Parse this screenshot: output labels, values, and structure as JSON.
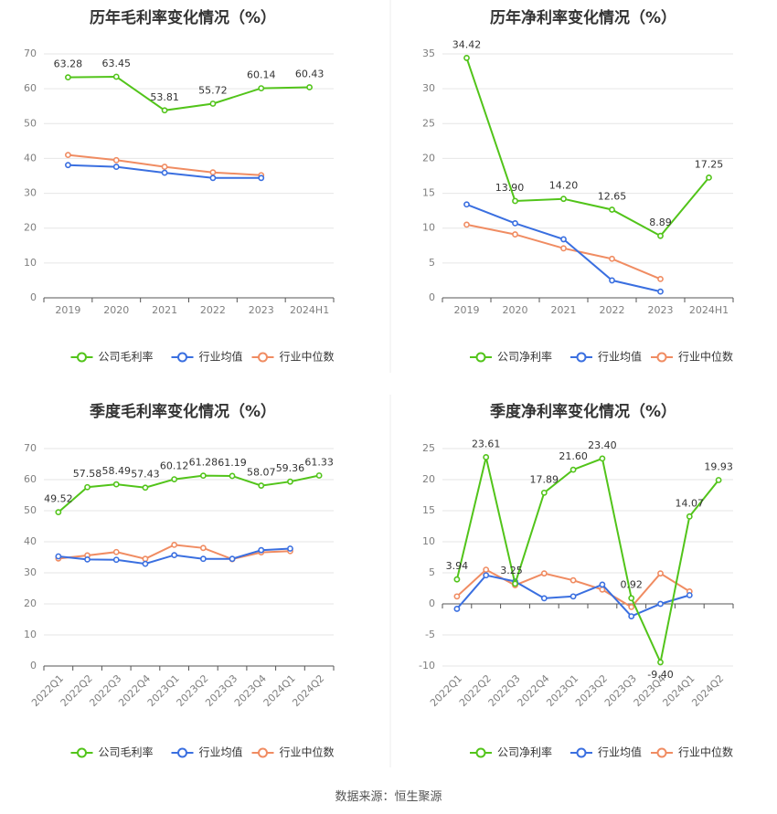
{
  "colors": {
    "green": "#52c41a",
    "blue": "#3a6fe0",
    "orange": "#f08c62"
  },
  "legend": {
    "gross": [
      "公司毛利率",
      "行业均值",
      "行业中位数"
    ],
    "net": [
      "公司净利率",
      "行业均值",
      "行业中位数"
    ]
  },
  "source": "数据来源：恒生聚源",
  "chart_data": [
    {
      "id": "annual-gross",
      "type": "line",
      "title": "历年毛利率变化情况（%）",
      "categories": [
        "2019",
        "2020",
        "2021",
        "2022",
        "2023",
        "2024H1"
      ],
      "ylim": [
        0,
        70
      ],
      "yticks": [
        0,
        10,
        20,
        30,
        40,
        50,
        60,
        70
      ],
      "series": [
        {
          "name": "公司毛利率",
          "color": "green",
          "values": [
            63.28,
            63.45,
            53.81,
            55.72,
            60.14,
            60.43
          ],
          "labels": [
            "63.28",
            "63.45",
            "53.81",
            "55.72",
            "60.14",
            "60.43"
          ]
        },
        {
          "name": "行业均值",
          "color": "blue",
          "values": [
            38.1,
            37.6,
            35.9,
            34.4,
            34.4,
            null
          ]
        },
        {
          "name": "行业中位数",
          "color": "orange",
          "values": [
            41.0,
            39.5,
            37.6,
            36.0,
            35.2,
            null
          ]
        }
      ]
    },
    {
      "id": "annual-net",
      "type": "line",
      "title": "历年净利率变化情况（%）",
      "categories": [
        "2019",
        "2020",
        "2021",
        "2022",
        "2023",
        "2024H1"
      ],
      "ylim": [
        0,
        35
      ],
      "yticks": [
        0,
        5,
        10,
        15,
        20,
        25,
        30,
        35
      ],
      "series": [
        {
          "name": "公司净利率",
          "color": "green",
          "values": [
            34.42,
            13.9,
            14.2,
            12.65,
            8.89,
            17.25
          ],
          "labels": [
            "34.42",
            "13.90",
            "14.20",
            "12.65",
            "8.89",
            "17.25"
          ]
        },
        {
          "name": "行业均值",
          "color": "blue",
          "values": [
            13.4,
            10.7,
            8.4,
            2.5,
            0.9,
            null
          ]
        },
        {
          "name": "行业中位数",
          "color": "orange",
          "values": [
            10.5,
            9.1,
            7.1,
            5.6,
            2.7,
            null
          ]
        }
      ]
    },
    {
      "id": "quarterly-gross",
      "type": "line",
      "title": "季度毛利率变化情况（%）",
      "categories": [
        "2022Q1",
        "2022Q2",
        "2022Q3",
        "2022Q4",
        "2023Q1",
        "2023Q2",
        "2023Q3",
        "2023Q4",
        "2024Q1",
        "2024Q2"
      ],
      "ylim": [
        0,
        70
      ],
      "yticks": [
        0,
        10,
        20,
        30,
        40,
        50,
        60,
        70
      ],
      "series": [
        {
          "name": "公司毛利率",
          "color": "green",
          "values": [
            49.52,
            57.58,
            58.49,
            57.43,
            60.12,
            61.28,
            61.19,
            58.07,
            59.36,
            61.33
          ],
          "labels": [
            "49.52",
            "57.58",
            "58.49",
            "57.43",
            "60.12",
            "61.28",
            "61.19",
            "58.07",
            "59.36",
            "61.33"
          ]
        },
        {
          "name": "行业均值",
          "color": "blue",
          "values": [
            35.3,
            34.3,
            34.2,
            32.9,
            35.7,
            34.5,
            34.5,
            37.3,
            37.8,
            null
          ]
        },
        {
          "name": "行业中位数",
          "color": "orange",
          "values": [
            34.6,
            35.6,
            36.7,
            34.5,
            39.0,
            38.0,
            34.4,
            36.6,
            37.0,
            null
          ]
        }
      ]
    },
    {
      "id": "quarterly-net",
      "type": "line",
      "title": "季度净利率变化情况（%）",
      "categories": [
        "2022Q1",
        "2022Q2",
        "2022Q3",
        "2022Q4",
        "2023Q1",
        "2023Q2",
        "2023Q3",
        "2023Q4",
        "2024Q1",
        "2024Q2"
      ],
      "ylim": [
        -10,
        25
      ],
      "yticks": [
        -10,
        -5,
        0,
        5,
        10,
        15,
        20,
        25
      ],
      "series": [
        {
          "name": "公司净利率",
          "color": "green",
          "values": [
            3.94,
            23.61,
            3.25,
            17.89,
            21.6,
            23.4,
            0.92,
            -9.4,
            14.07,
            19.93
          ],
          "labels": [
            "3.94",
            "23.61",
            "3.25",
            "17.89",
            "21.60",
            "23.40",
            "0.92",
            "-9.40",
            "14.07",
            "19.93"
          ]
        },
        {
          "name": "行业均值",
          "color": "blue",
          "values": [
            -0.8,
            4.6,
            3.6,
            0.9,
            1.2,
            3.1,
            -2.0,
            0.0,
            1.4,
            null
          ]
        },
        {
          "name": "行业中位数",
          "color": "orange",
          "values": [
            1.2,
            5.5,
            3.0,
            4.9,
            3.8,
            2.3,
            -0.5,
            4.9,
            2.0,
            null
          ]
        }
      ]
    }
  ]
}
